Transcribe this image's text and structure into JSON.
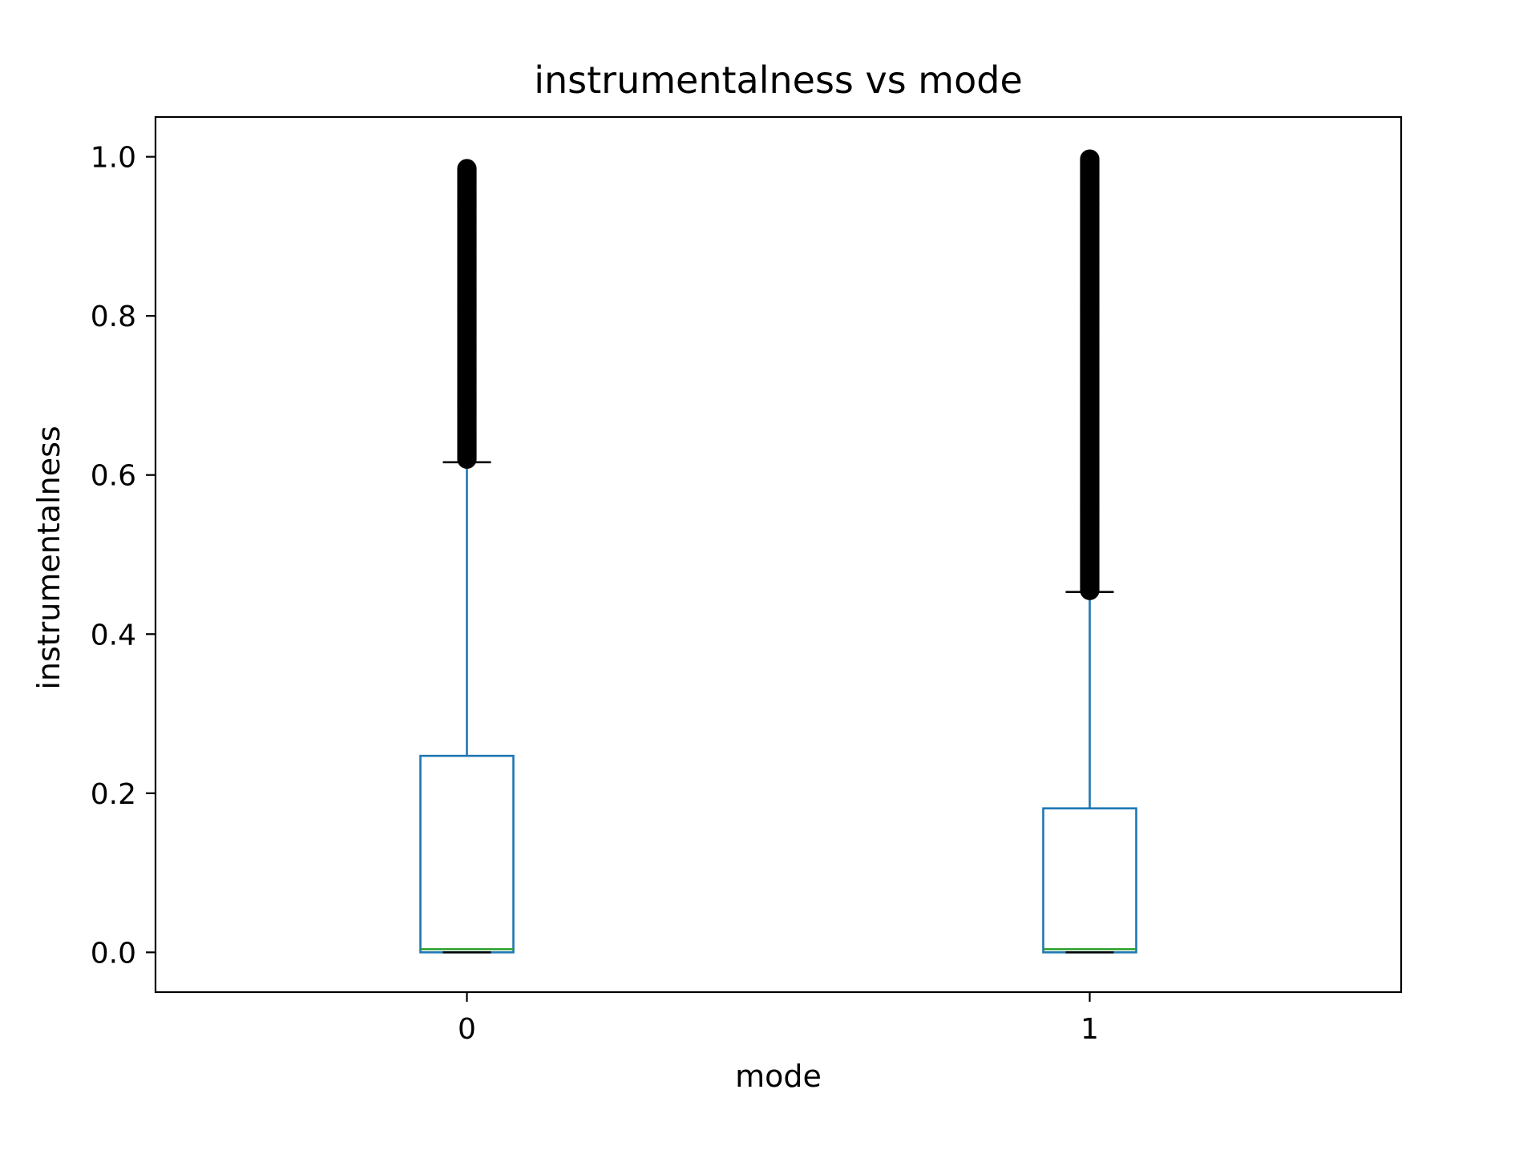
{
  "chart_data": {
    "type": "box",
    "title": "instrumentalness vs mode",
    "xlabel": "mode",
    "ylabel": "instrumentalness",
    "categories": [
      "0",
      "1"
    ],
    "ylim": [
      -0.05,
      1.05
    ],
    "yticks": [
      0.0,
      0.2,
      0.4,
      0.6,
      0.8,
      1.0
    ],
    "ytick_labels": [
      "0.0",
      "0.2",
      "0.4",
      "0.6",
      "0.8",
      "1.0"
    ],
    "grid": false,
    "boxes": [
      {
        "category": "0",
        "whisker_low": 0.0,
        "q1": 0.0,
        "median": 0.004,
        "q3": 0.247,
        "whisker_high": 0.616,
        "outliers_range": [
          0.62,
          0.985
        ]
      },
      {
        "category": "1",
        "whisker_low": 0.0,
        "q1": 0.0,
        "median": 0.004,
        "q3": 0.181,
        "whisker_high": 0.453,
        "outliers_range": [
          0.455,
          0.997
        ]
      }
    ]
  },
  "colors": {
    "box": "#1f77b4",
    "median": "#2ca02c",
    "cap": "#000000",
    "outlier": "#000000",
    "axes": "#000000"
  }
}
